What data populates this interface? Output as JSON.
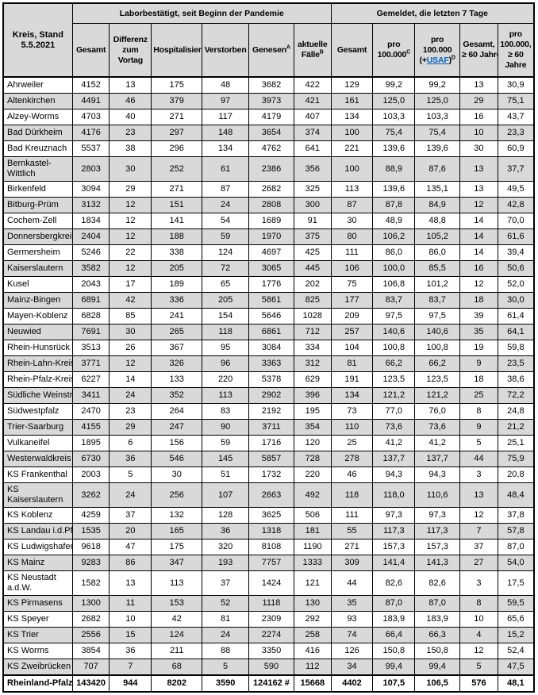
{
  "table": {
    "corner": {
      "line1": "Kreis, Stand",
      "line2": "5.5.2021"
    },
    "group1": {
      "label": "Laborbestätigt, seit Beginn der Pandemie"
    },
    "group2": {
      "label": "Gemeldet, die letzten 7 Tage"
    },
    "columns": [
      {
        "id": "gesamt-pandemie",
        "pre": "Gesamt"
      },
      {
        "id": "differenz-vortag",
        "pre": "Differenz\nzum\nVortag"
      },
      {
        "id": "hospitalisiert",
        "pre": "Hospitalisiert"
      },
      {
        "id": "verstorben",
        "pre": "Verstorben"
      },
      {
        "id": "genesen",
        "pre": "Genesen",
        "sup": "A"
      },
      {
        "id": "aktuelle-faelle",
        "pre": "aktuelle\nFälle",
        "sup": "B"
      },
      {
        "id": "gesamt-7tage",
        "pre": "Gesamt"
      },
      {
        "id": "pro-100000",
        "pre": "pro\n100.000",
        "sup": "C"
      },
      {
        "id": "pro-100000-usaf",
        "pre": "pro\n100.000\n(+",
        "link": "USAF",
        "post": ")",
        "sup": "D"
      },
      {
        "id": "gesamt-60",
        "pre": "Gesamt,\n≥ 60 Jahre"
      },
      {
        "id": "pro-100000-60",
        "pre": "pro\n100.000,\n≥ 60\nJahre"
      }
    ],
    "rows": [
      {
        "kreis": "Ahrweiler",
        "values": [
          "4152",
          "13",
          "175",
          "48",
          "3682",
          "422",
          "129",
          "99,2",
          "99,2",
          "13",
          "30,9"
        ]
      },
      {
        "kreis": "Altenkirchen",
        "values": [
          "4491",
          "46",
          "379",
          "97",
          "3973",
          "421",
          "161",
          "125,0",
          "125,0",
          "29",
          "75,1"
        ]
      },
      {
        "kreis": "Alzey-Worms",
        "values": [
          "4703",
          "40",
          "271",
          "117",
          "4179",
          "407",
          "134",
          "103,3",
          "103,3",
          "16",
          "43,7"
        ]
      },
      {
        "kreis": "Bad Dürkheim",
        "values": [
          "4176",
          "23",
          "297",
          "148",
          "3654",
          "374",
          "100",
          "75,4",
          "75,4",
          "10",
          "23,3"
        ]
      },
      {
        "kreis": "Bad Kreuznach",
        "values": [
          "5537",
          "38",
          "296",
          "134",
          "4762",
          "641",
          "221",
          "139,6",
          "139,6",
          "30",
          "60,9"
        ]
      },
      {
        "kreis": "Bernkastel-\nWittlich",
        "values": [
          "2803",
          "30",
          "252",
          "61",
          "2386",
          "356",
          "100",
          "88,9",
          "87,6",
          "13",
          "37,7"
        ]
      },
      {
        "kreis": "Birkenfeld",
        "values": [
          "3094",
          "29",
          "271",
          "87",
          "2682",
          "325",
          "113",
          "139,6",
          "135,1",
          "13",
          "49,5"
        ]
      },
      {
        "kreis": "Bitburg-Prüm",
        "values": [
          "3132",
          "12",
          "151",
          "24",
          "2808",
          "300",
          "87",
          "87,8",
          "84,9",
          "12",
          "42,8"
        ]
      },
      {
        "kreis": "Cochem-Zell",
        "values": [
          "1834",
          "12",
          "141",
          "54",
          "1689",
          "91",
          "30",
          "48,9",
          "48,8",
          "14",
          "70,0"
        ]
      },
      {
        "kreis": "Donnersbergkreis",
        "values": [
          "2404",
          "12",
          "188",
          "59",
          "1970",
          "375",
          "80",
          "106,2",
          "105,2",
          "14",
          "61,6"
        ]
      },
      {
        "kreis": "Germersheim",
        "values": [
          "5246",
          "22",
          "338",
          "124",
          "4697",
          "425",
          "111",
          "86,0",
          "86,0",
          "14",
          "39,4"
        ]
      },
      {
        "kreis": "Kaiserslautern",
        "values": [
          "3582",
          "12",
          "205",
          "72",
          "3065",
          "445",
          "106",
          "100,0",
          "85,5",
          "16",
          "50,6"
        ]
      },
      {
        "kreis": "Kusel",
        "values": [
          "2043",
          "17",
          "189",
          "65",
          "1776",
          "202",
          "75",
          "106,8",
          "101,2",
          "12",
          "52,0"
        ]
      },
      {
        "kreis": "Mainz-Bingen",
        "values": [
          "6891",
          "42",
          "336",
          "205",
          "5861",
          "825",
          "177",
          "83,7",
          "83,7",
          "18",
          "30,0"
        ]
      },
      {
        "kreis": "Mayen-Koblenz",
        "values": [
          "6828",
          "85",
          "241",
          "154",
          "5646",
          "1028",
          "209",
          "97,5",
          "97,5",
          "39",
          "61,4"
        ]
      },
      {
        "kreis": "Neuwied",
        "values": [
          "7691",
          "30",
          "265",
          "118",
          "6861",
          "712",
          "257",
          "140,6",
          "140,6",
          "35",
          "64,1"
        ]
      },
      {
        "kreis": "Rhein-Hunsrück",
        "values": [
          "3513",
          "26",
          "367",
          "95",
          "3084",
          "334",
          "104",
          "100,8",
          "100,8",
          "19",
          "59,8"
        ]
      },
      {
        "kreis": "Rhein-Lahn-Kreis",
        "values": [
          "3771",
          "12",
          "326",
          "96",
          "3363",
          "312",
          "81",
          "66,2",
          "66,2",
          "9",
          "23,5"
        ]
      },
      {
        "kreis": "Rhein-Pfalz-Kreis",
        "values": [
          "6227",
          "14",
          "133",
          "220",
          "5378",
          "629",
          "191",
          "123,5",
          "123,5",
          "18",
          "38,6"
        ]
      },
      {
        "kreis": "Südliche Weinstr.",
        "values": [
          "3411",
          "24",
          "352",
          "113",
          "2902",
          "396",
          "134",
          "121,2",
          "121,2",
          "25",
          "72,2"
        ]
      },
      {
        "kreis": "Südwestpfalz",
        "values": [
          "2470",
          "23",
          "264",
          "83",
          "2192",
          "195",
          "73",
          "77,0",
          "76,0",
          "8",
          "24,8"
        ]
      },
      {
        "kreis": "Trier-Saarburg",
        "values": [
          "4155",
          "29",
          "247",
          "90",
          "3711",
          "354",
          "110",
          "73,6",
          "73,6",
          "9",
          "21,2"
        ]
      },
      {
        "kreis": "Vulkaneifel",
        "values": [
          "1895",
          "6",
          "156",
          "59",
          "1716",
          "120",
          "25",
          "41,2",
          "41,2",
          "5",
          "25,1"
        ]
      },
      {
        "kreis": "Westerwaldkreis",
        "values": [
          "6730",
          "36",
          "546",
          "145",
          "5857",
          "728",
          "278",
          "137,7",
          "137,7",
          "44",
          "75,9"
        ]
      },
      {
        "kreis": "KS Frankenthal",
        "values": [
          "2003",
          "5",
          "30",
          "51",
          "1732",
          "220",
          "46",
          "94,3",
          "94,3",
          "3",
          "20,8"
        ]
      },
      {
        "kreis": "KS\nKaiserslautern",
        "values": [
          "3262",
          "24",
          "256",
          "107",
          "2663",
          "492",
          "118",
          "118,0",
          "110,6",
          "13",
          "48,4"
        ]
      },
      {
        "kreis": "KS Koblenz",
        "values": [
          "4259",
          "37",
          "132",
          "128",
          "3625",
          "506",
          "111",
          "97,3",
          "97,3",
          "12",
          "37,8"
        ]
      },
      {
        "kreis": "KS Landau i.d.Pf.",
        "values": [
          "1535",
          "20",
          "165",
          "36",
          "1318",
          "181",
          "55",
          "117,3",
          "117,3",
          "7",
          "57,8"
        ]
      },
      {
        "kreis": "KS Ludwigshafen",
        "values": [
          "9618",
          "47",
          "175",
          "320",
          "8108",
          "1190",
          "271",
          "157,3",
          "157,3",
          "37",
          "87,0"
        ]
      },
      {
        "kreis": "KS Mainz",
        "values": [
          "9283",
          "86",
          "347",
          "193",
          "7757",
          "1333",
          "309",
          "141,4",
          "141,3",
          "27",
          "54,0"
        ]
      },
      {
        "kreis": "KS Neustadt\na.d.W.",
        "values": [
          "1582",
          "13",
          "113",
          "37",
          "1424",
          "121",
          "44",
          "82,6",
          "82,6",
          "3",
          "17,5"
        ]
      },
      {
        "kreis": "KS Pirmasens",
        "values": [
          "1300",
          "11",
          "153",
          "52",
          "1118",
          "130",
          "35",
          "87,0",
          "87,0",
          "8",
          "59,5"
        ]
      },
      {
        "kreis": "KS Speyer",
        "values": [
          "2682",
          "10",
          "42",
          "81",
          "2309",
          "292",
          "93",
          "183,9",
          "183,9",
          "10",
          "65,6"
        ]
      },
      {
        "kreis": "KS Trier",
        "values": [
          "2556",
          "15",
          "124",
          "24",
          "2274",
          "258",
          "74",
          "66,4",
          "66,3",
          "4",
          "15,2"
        ]
      },
      {
        "kreis": "KS Worms",
        "values": [
          "3854",
          "36",
          "211",
          "88",
          "3350",
          "416",
          "126",
          "150,8",
          "150,8",
          "12",
          "52,4"
        ]
      },
      {
        "kreis": "KS Zweibrücken",
        "values": [
          "707",
          "7",
          "68",
          "5",
          "590",
          "112",
          "34",
          "99,4",
          "99,4",
          "5",
          "47,5"
        ]
      }
    ],
    "total": {
      "kreis": "Rheinland-Pfalz",
      "values": [
        "143420",
        "944",
        "8202",
        "3590",
        "124162 #",
        "15668",
        "4402",
        "107,5",
        "106,5",
        "576",
        "48,1"
      ]
    },
    "colors": {
      "row_alt": "#d9d9d9",
      "header_bg": "#d9d9d9",
      "link": "#0563c1",
      "border": "#000000"
    }
  }
}
